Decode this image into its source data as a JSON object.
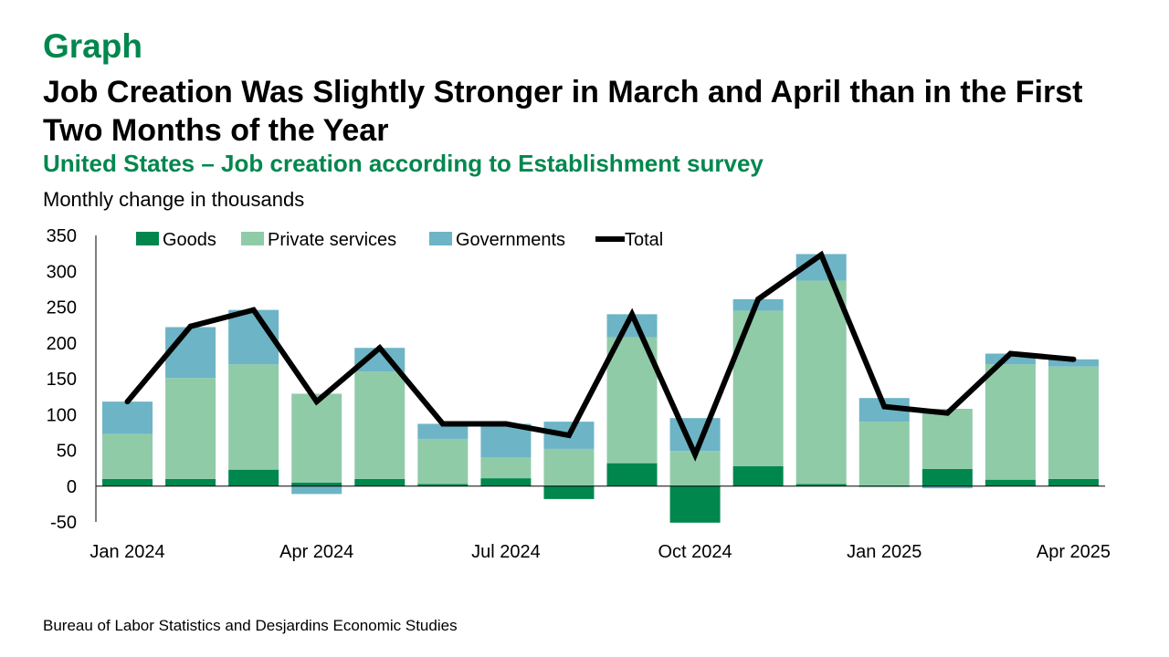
{
  "header": {
    "eyebrow": "Graph",
    "title": "Job Creation Was Slightly Stronger in March and April than in the First Two Months of the Year",
    "subtitle": "United States – Job creation according to Establishment survey",
    "units": "Monthly change in thousands"
  },
  "footer": {
    "source": "Bureau of Labor Statistics and Desjardins Economic Studies"
  },
  "colors": {
    "goods": "#00874e",
    "private_services": "#90cba8",
    "governments": "#6db4c6",
    "total": "#000000"
  },
  "chart_data": {
    "type": "bar",
    "stacked": true,
    "categories": [
      "Jan 2024",
      "Feb 2024",
      "Mar 2024",
      "Apr 2024",
      "May 2024",
      "Jun 2024",
      "Jul 2024",
      "Aug 2024",
      "Sep 2024",
      "Oct 2024",
      "Nov 2024",
      "Dec 2024",
      "Jan 2025",
      "Feb 2025",
      "Mar 2025",
      "Apr 2025"
    ],
    "x_tick_labels": [
      "Jan 2024",
      "",
      "",
      "Apr 2024",
      "",
      "",
      "Jul 2024",
      "",
      "",
      "Oct 2024",
      "",
      "",
      "Jan 2025",
      "",
      "",
      "Apr 2025"
    ],
    "series": [
      {
        "name": "Goods",
        "kind": "bar",
        "values": [
          10,
          10,
          23,
          5,
          10,
          3,
          11,
          -18,
          32,
          -51,
          28,
          3,
          -1,
          24,
          9,
          10
        ]
      },
      {
        "name": "Private services",
        "kind": "bar",
        "values": [
          63,
          141,
          147,
          124,
          150,
          63,
          29,
          52,
          176,
          49,
          217,
          284,
          90,
          84,
          161,
          157
        ]
      },
      {
        "name": "Governments",
        "kind": "bar",
        "values": [
          45,
          71,
          76,
          -11,
          33,
          21,
          47,
          38,
          32,
          46,
          16,
          37,
          33,
          -3,
          15,
          10
        ]
      },
      {
        "name": "Total",
        "kind": "line",
        "values": [
          118,
          223,
          246,
          118,
          193,
          87,
          87,
          71,
          240,
          44,
          261,
          323,
          111,
          102,
          185,
          177
        ]
      }
    ],
    "y_ticks": [
      -50,
      0,
      50,
      100,
      150,
      200,
      250,
      300,
      350
    ],
    "ylim": [
      -50,
      350
    ],
    "xlabel": "",
    "ylabel": "",
    "grid": false,
    "legend": "top"
  }
}
